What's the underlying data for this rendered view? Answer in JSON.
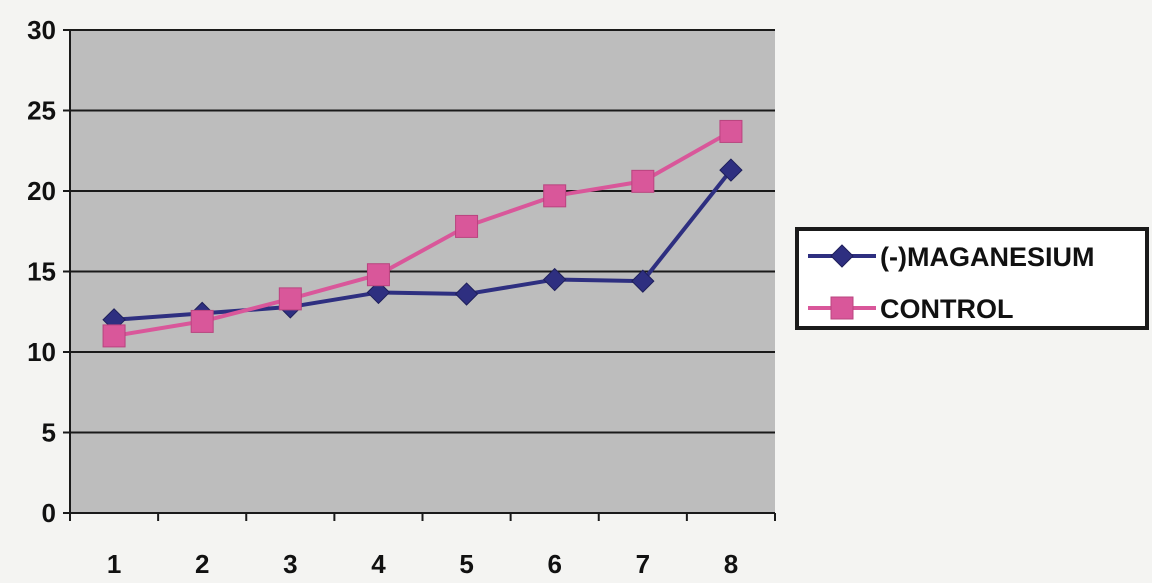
{
  "chart_data": {
    "type": "line",
    "title": "",
    "xlabel": "",
    "ylabel": "",
    "categories": [
      "1",
      "2",
      "3",
      "4",
      "5",
      "6",
      "7",
      "8"
    ],
    "ylim": [
      0,
      30
    ],
    "yticks": [
      0,
      5,
      10,
      15,
      20,
      25,
      30
    ],
    "grid": true,
    "legend_position": "right",
    "plot_background": "#bdbdbd",
    "series": [
      {
        "name": "(-)MAGANESIUM",
        "marker": "diamond",
        "color": "#2e2f80",
        "values": [
          12,
          12.4,
          12.8,
          13.7,
          13.6,
          14.5,
          14.4,
          21.3
        ]
      },
      {
        "name": "CONTROL",
        "marker": "square",
        "color": "#d9579a",
        "values": [
          11,
          11.9,
          13.3,
          14.8,
          17.8,
          19.7,
          20.6,
          23.7
        ]
      }
    ]
  }
}
